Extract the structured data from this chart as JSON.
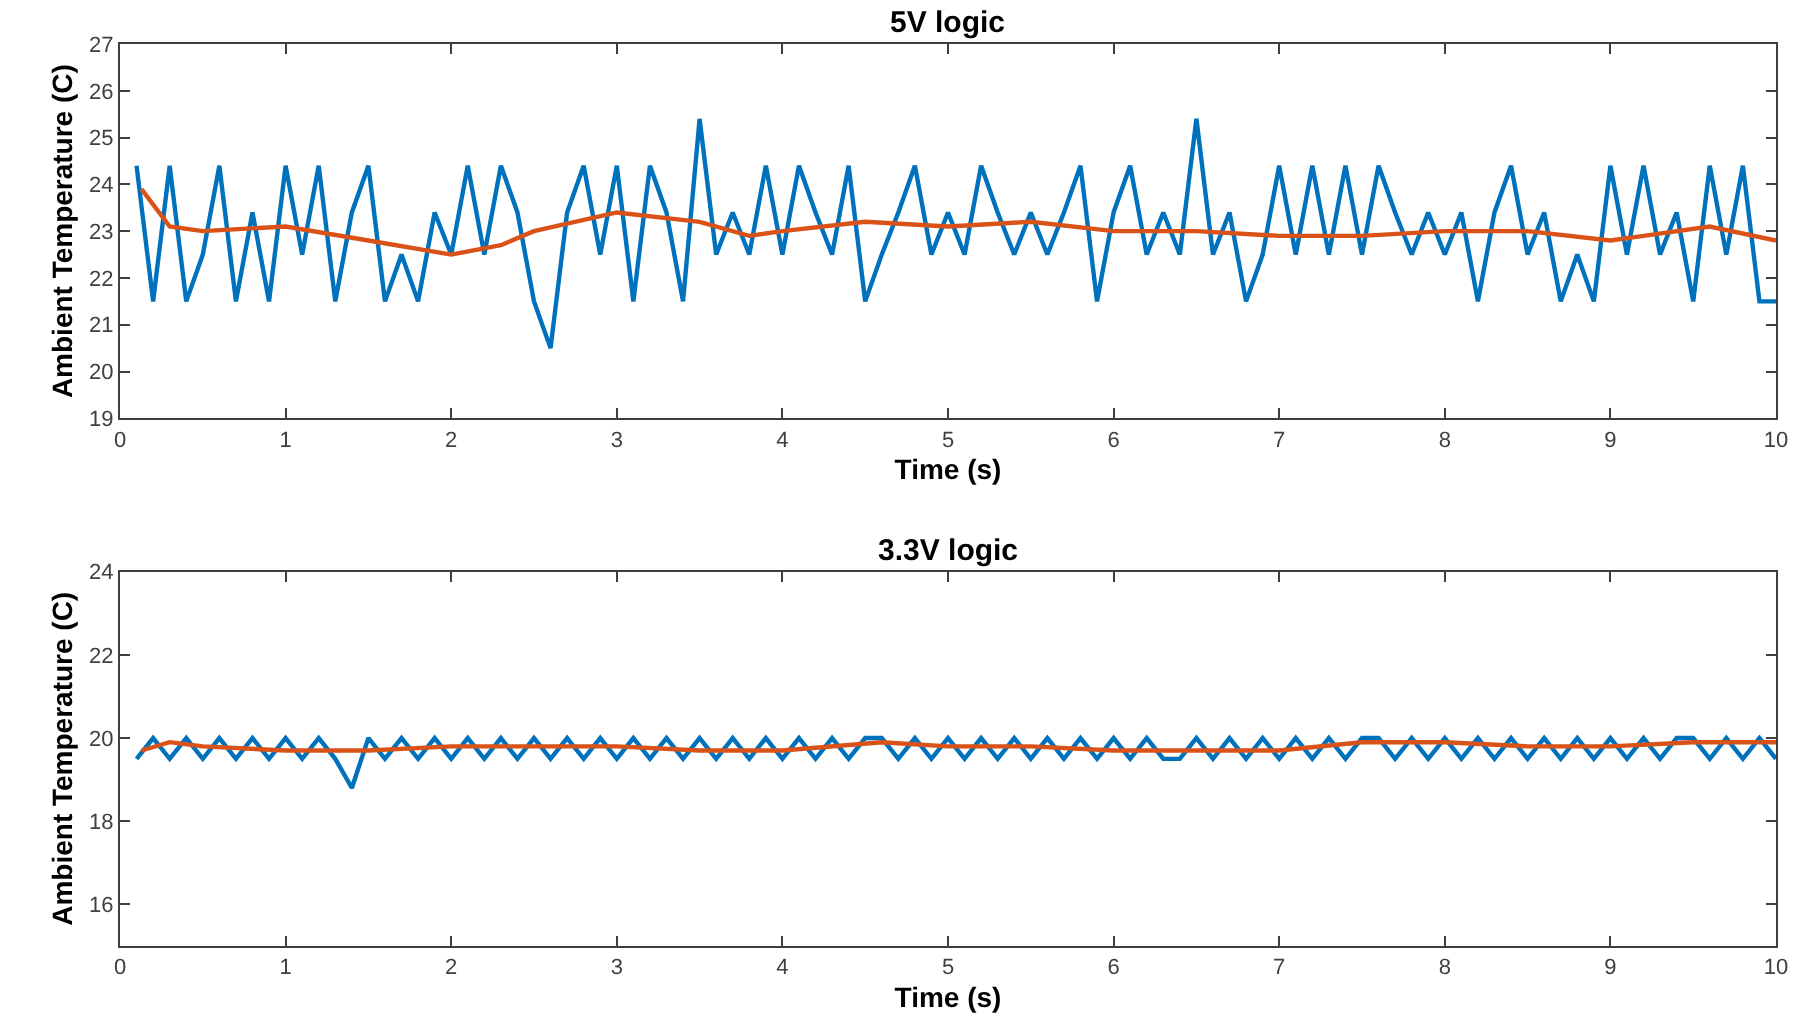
{
  "chart_data": [
    {
      "type": "line",
      "title": "5V logic",
      "xlabel": "Time (s)",
      "ylabel": "Ambient Temperature (C)",
      "xlim": [
        0,
        10
      ],
      "ylim": [
        19,
        27
      ],
      "xticks": [
        0,
        1,
        2,
        3,
        4,
        5,
        6,
        7,
        8,
        9,
        10
      ],
      "yticks": [
        19,
        20,
        21,
        22,
        23,
        24,
        25,
        26,
        27
      ],
      "x": [
        0.1,
        0.2,
        0.3,
        0.4,
        0.5,
        0.6,
        0.7,
        0.8,
        0.9,
        1.0,
        1.1,
        1.2,
        1.3,
        1.4,
        1.5,
        1.6,
        1.7,
        1.8,
        1.9,
        2.0,
        2.1,
        2.2,
        2.3,
        2.4,
        2.5,
        2.6,
        2.7,
        2.8,
        2.9,
        3.0,
        3.1,
        3.2,
        3.3,
        3.4,
        3.5,
        3.6,
        3.7,
        3.8,
        3.9,
        4.0,
        4.1,
        4.2,
        4.3,
        4.4,
        4.5,
        4.6,
        4.7,
        4.8,
        4.9,
        5.0,
        5.1,
        5.2,
        5.3,
        5.4,
        5.5,
        5.6,
        5.7,
        5.8,
        5.9,
        6.0,
        6.1,
        6.2,
        6.3,
        6.4,
        6.5,
        6.6,
        6.7,
        6.8,
        6.9,
        7.0,
        7.1,
        7.2,
        7.3,
        7.4,
        7.5,
        7.6,
        7.7,
        7.8,
        7.9,
        8.0,
        8.1,
        8.2,
        8.3,
        8.4,
        8.5,
        8.6,
        8.7,
        8.8,
        8.9,
        9.0,
        9.1,
        9.2,
        9.3,
        9.4,
        9.5,
        9.6,
        9.7,
        9.8,
        9.9,
        10.0
      ],
      "series": [
        {
          "color": "#0072bd",
          "values": [
            24.4,
            21.5,
            24.4,
            21.5,
            22.5,
            24.4,
            21.5,
            23.4,
            21.5,
            24.4,
            22.5,
            24.4,
            21.5,
            23.4,
            24.4,
            21.5,
            22.5,
            21.5,
            23.4,
            22.5,
            24.4,
            22.5,
            24.4,
            23.4,
            21.5,
            20.5,
            23.4,
            24.4,
            22.5,
            24.4,
            21.5,
            24.4,
            23.4,
            21.5,
            25.4,
            22.5,
            23.4,
            22.5,
            24.4,
            22.5,
            24.4,
            23.4,
            22.5,
            24.4,
            21.5,
            22.5,
            23.4,
            24.4,
            22.5,
            23.4,
            22.5,
            24.4,
            23.4,
            22.5,
            23.4,
            22.5,
            23.4,
            24.4,
            21.5,
            23.4,
            24.4,
            22.5,
            23.4,
            22.5,
            25.4,
            22.5,
            23.4,
            21.5,
            22.5,
            24.4,
            22.5,
            24.4,
            22.5,
            24.4,
            22.5,
            24.4,
            23.4,
            22.5,
            23.4,
            22.5,
            23.4,
            21.5,
            23.4,
            24.4,
            22.5,
            23.4,
            21.5,
            22.5,
            21.5,
            24.4,
            22.5,
            24.4,
            22.5,
            23.4,
            21.5,
            24.4,
            22.5,
            24.4,
            21.5,
            21.5
          ]
        },
        {
          "color": "#d95319",
          "x": [
            0.13,
            0.3,
            0.5,
            1.0,
            1.5,
            2.0,
            2.3,
            2.5,
            3.0,
            3.5,
            3.8,
            4.0,
            4.5,
            5.0,
            5.5,
            6.0,
            6.5,
            7.0,
            7.5,
            8.0,
            8.5,
            9.0,
            9.2,
            9.6,
            10.0
          ],
          "values": [
            23.9,
            23.1,
            23.0,
            23.1,
            22.8,
            22.5,
            22.7,
            23.0,
            23.4,
            23.2,
            22.9,
            23.0,
            23.2,
            23.1,
            23.2,
            23.0,
            23.0,
            22.9,
            22.9,
            23.0,
            23.0,
            22.8,
            22.9,
            23.1,
            22.8
          ]
        }
      ]
    },
    {
      "type": "line",
      "title": "3.3V logic",
      "xlabel": "Time (s)",
      "ylabel": "Ambient Temperature (C)",
      "xlim": [
        0,
        10
      ],
      "ylim": [
        15,
        24
      ],
      "xticks": [
        0,
        1,
        2,
        3,
        4,
        5,
        6,
        7,
        8,
        9,
        10
      ],
      "yticks": [
        16,
        18,
        20,
        22,
        24
      ],
      "x": [
        0.1,
        0.2,
        0.3,
        0.4,
        0.5,
        0.6,
        0.7,
        0.8,
        0.9,
        1.0,
        1.1,
        1.2,
        1.3,
        1.4,
        1.5,
        1.6,
        1.7,
        1.8,
        1.9,
        2.0,
        2.1,
        2.2,
        2.3,
        2.4,
        2.5,
        2.6,
        2.7,
        2.8,
        2.9,
        3.0,
        3.1,
        3.2,
        3.3,
        3.4,
        3.5,
        3.6,
        3.7,
        3.8,
        3.9,
        4.0,
        4.1,
        4.2,
        4.3,
        4.4,
        4.5,
        4.6,
        4.7,
        4.8,
        4.9,
        5.0,
        5.1,
        5.2,
        5.3,
        5.4,
        5.5,
        5.6,
        5.7,
        5.8,
        5.9,
        6.0,
        6.1,
        6.2,
        6.3,
        6.4,
        6.5,
        6.6,
        6.7,
        6.8,
        6.9,
        7.0,
        7.1,
        7.2,
        7.3,
        7.4,
        7.5,
        7.6,
        7.7,
        7.8,
        7.9,
        8.0,
        8.1,
        8.2,
        8.3,
        8.4,
        8.5,
        8.6,
        8.7,
        8.8,
        8.9,
        9.0,
        9.1,
        9.2,
        9.3,
        9.4,
        9.5,
        9.6,
        9.7,
        9.8,
        9.9,
        10.0
      ],
      "series": [
        {
          "color": "#0072bd",
          "values": [
            19.5,
            20.0,
            19.5,
            20.0,
            19.5,
            20.0,
            19.5,
            20.0,
            19.5,
            20.0,
            19.5,
            20.0,
            19.5,
            18.8,
            20.0,
            19.5,
            20.0,
            19.5,
            20.0,
            19.5,
            20.0,
            19.5,
            20.0,
            19.5,
            20.0,
            19.5,
            20.0,
            19.5,
            20.0,
            19.5,
            20.0,
            19.5,
            20.0,
            19.5,
            20.0,
            19.5,
            20.0,
            19.5,
            20.0,
            19.5,
            20.0,
            19.5,
            20.0,
            19.5,
            20.0,
            20.0,
            19.5,
            20.0,
            19.5,
            20.0,
            19.5,
            20.0,
            19.5,
            20.0,
            19.5,
            20.0,
            19.5,
            20.0,
            19.5,
            20.0,
            19.5,
            20.0,
            19.5,
            19.5,
            20.0,
            19.5,
            20.0,
            19.5,
            20.0,
            19.5,
            20.0,
            19.5,
            20.0,
            19.5,
            20.0,
            20.0,
            19.5,
            20.0,
            19.5,
            20.0,
            19.5,
            20.0,
            19.5,
            20.0,
            19.5,
            20.0,
            19.5,
            20.0,
            19.5,
            20.0,
            19.5,
            20.0,
            19.5,
            20.0,
            20.0,
            19.5,
            20.0,
            19.5,
            20.0,
            19.5
          ]
        },
        {
          "color": "#d95319",
          "x": [
            0.13,
            0.3,
            0.5,
            1.0,
            1.5,
            2.0,
            2.5,
            3.0,
            3.5,
            4.0,
            4.6,
            5.0,
            5.5,
            6.0,
            6.5,
            7.0,
            7.5,
            8.0,
            8.5,
            9.0,
            9.5,
            10.0
          ],
          "values": [
            19.7,
            19.9,
            19.8,
            19.7,
            19.7,
            19.8,
            19.8,
            19.8,
            19.7,
            19.7,
            19.9,
            19.8,
            19.8,
            19.7,
            19.7,
            19.7,
            19.9,
            19.9,
            19.8,
            19.8,
            19.9,
            19.9
          ]
        }
      ]
    }
  ]
}
